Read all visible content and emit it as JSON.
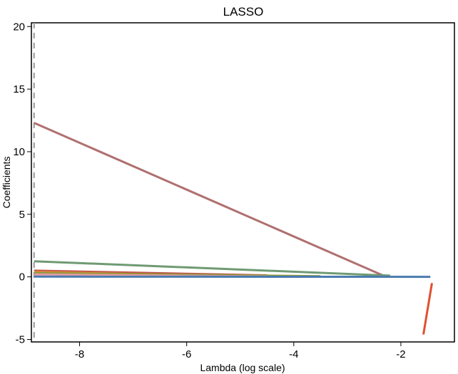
{
  "chart_data": {
    "type": "line",
    "title": "LASSO",
    "xlabel": "Lambda (log scale)",
    "ylabel": "Coefficients",
    "xlim": [
      -8.9,
      -1.0
    ],
    "ylim": [
      -5.2,
      20.3
    ],
    "xticks": [
      -8,
      -6,
      -4,
      -2
    ],
    "yticks": [
      -5,
      0,
      5,
      10,
      15,
      20
    ],
    "xtick_labels": [
      "-8",
      "-6",
      "-4",
      "-2"
    ],
    "ytick_labels": [
      "-5",
      "0",
      "5",
      "10",
      "15",
      "20"
    ],
    "grid": false,
    "vline": {
      "x": -8.85,
      "style": "dashed",
      "color": "#999999"
    },
    "series": [
      {
        "color": "#b07070",
        "x": [
          -8.85,
          -2.3
        ],
        "y": [
          12.3,
          0.05
        ]
      },
      {
        "color": "#6f9a72",
        "x": [
          -8.85,
          -2.2
        ],
        "y": [
          1.25,
          0.1
        ]
      },
      {
        "color": "#c0574a",
        "x": [
          -8.85,
          -4.5
        ],
        "y": [
          0.5,
          0.12
        ]
      },
      {
        "color": "#d98a3a",
        "x": [
          -8.85,
          -5.5
        ],
        "y": [
          0.4,
          0.08
        ]
      },
      {
        "color": "#8c9a3a",
        "x": [
          -8.85,
          -3.5
        ],
        "y": [
          0.3,
          0.05
        ]
      },
      {
        "color": "#e39aa0",
        "x": [
          -8.85,
          -4.5
        ],
        "y": [
          0.2,
          0.03
        ]
      },
      {
        "color": "#4a7bb0",
        "x": [
          -8.85,
          -1.45
        ],
        "y": [
          0.02,
          0.0
        ]
      },
      {
        "color": "#e0502e",
        "x": [
          -1.58,
          -1.42
        ],
        "y": [
          -4.6,
          -0.5
        ]
      }
    ]
  }
}
